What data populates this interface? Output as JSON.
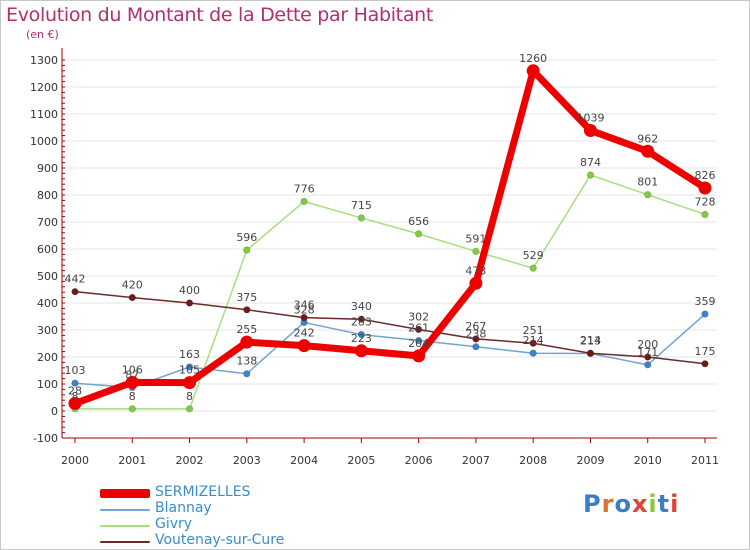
{
  "header": {
    "title": "Evolution du Montant de la Dette par Habitant",
    "subtitle": "(en €)"
  },
  "logo": {
    "text": "Proxiti",
    "colors": [
      "#3a7fc4",
      "#e0702a",
      "#3a7fc4",
      "#e84030",
      "#8ac640",
      "#3a7fc4",
      "#e84030"
    ]
  },
  "colors": {
    "axis": "#a00000",
    "grid": "#e6e6e6",
    "title": "#b0306a",
    "legend_text": "#3a8ccf"
  },
  "chart_data": {
    "type": "line",
    "title": "Evolution du Montant de la Dette par Habitant",
    "subtitle": "(en €)",
    "xlabel": "",
    "ylabel": "",
    "x": [
      "2000",
      "2001",
      "2002",
      "2003",
      "2004",
      "2005",
      "2006",
      "2007",
      "2008",
      "2009",
      "2010",
      "2011"
    ],
    "ylim": [
      -100,
      1300
    ],
    "yticks": [
      "-100",
      "0",
      "100",
      "200",
      "300",
      "400",
      "500",
      "600",
      "700",
      "800",
      "900",
      "1000",
      "1100",
      "1200",
      "1300"
    ],
    "grid": true,
    "legend_position": "bottom-left",
    "series": [
      {
        "name": "SERMIZELLES",
        "color": "#ee0000",
        "point_color": "#ee0000",
        "values": [
          28,
          106,
          105,
          255,
          242,
          223,
          204,
          473,
          1260,
          1039,
          962,
          826
        ],
        "labels": [
          "28",
          "106",
          "105",
          "255",
          "242",
          "223",
          "204",
          "473",
          "1260",
          "1039",
          "962",
          "826"
        ]
      },
      {
        "name": "Blannay",
        "color": "#73a5d2",
        "point_color": "#3c83c8",
        "values": [
          103,
          87,
          163,
          138,
          328,
          283,
          261,
          238,
          214,
          213,
          171,
          359
        ],
        "labels": [
          "103",
          "87",
          "163",
          "138",
          "328",
          "283",
          "261",
          "238",
          "214",
          "213",
          "171",
          "359"
        ]
      },
      {
        "name": "Givry",
        "color": "#a8de80",
        "point_color": "#80cc40",
        "values": [
          8,
          8,
          8,
          596,
          776,
          715,
          656,
          591,
          529,
          874,
          801,
          728
        ],
        "labels": [
          "8",
          "8",
          "8",
          "596",
          "776",
          "715",
          "656",
          "591",
          "529",
          "874",
          "801",
          "728"
        ]
      },
      {
        "name": "Voutenay-sur-Cure",
        "color": "#6b2a2a",
        "point_color": "#6e1a1a",
        "values": [
          442,
          420,
          400,
          375,
          346,
          340,
          302,
          267,
          251,
          214,
          200,
          175
        ],
        "labels": [
          "442",
          "420",
          "400",
          "375",
          "346",
          "340",
          "302",
          "267",
          "251",
          "214",
          "200",
          "175"
        ]
      }
    ]
  }
}
